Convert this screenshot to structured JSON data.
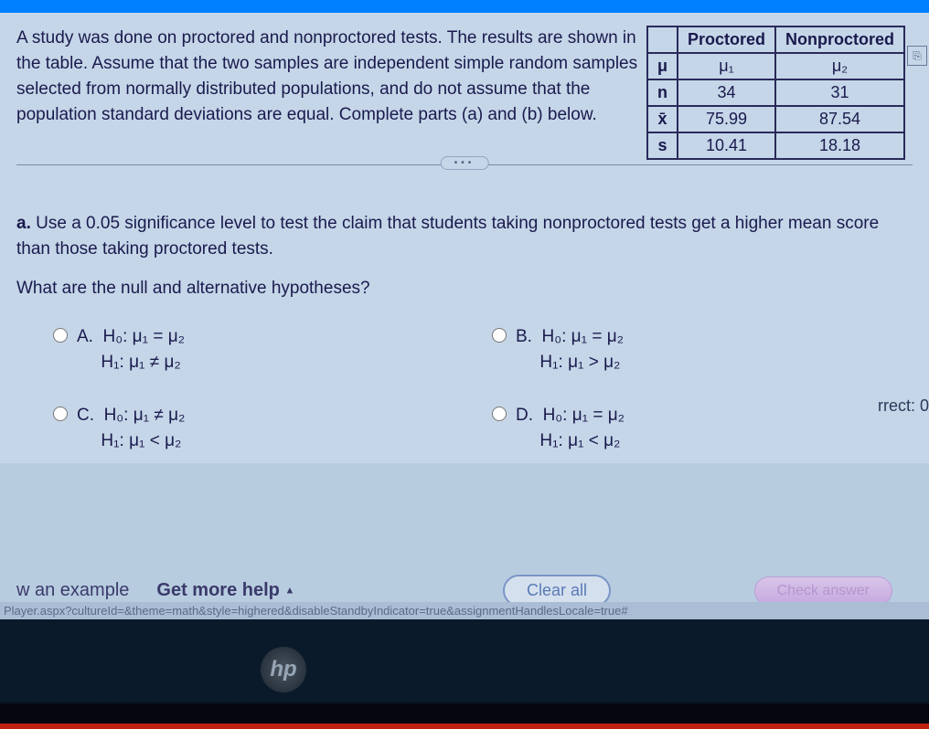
{
  "problem": {
    "text": "A study was done on proctored and nonproctored tests. The results are shown in the table. Assume that the two samples are independent simple random samples selected from normally distributed populations, and do not assume that the population standard deviations are equal. Complete parts (a) and (b) below."
  },
  "table": {
    "headers": [
      "",
      "Proctored",
      "Nonproctored"
    ],
    "rows": [
      {
        "label": "μ",
        "c1": "μ₁",
        "c2": "μ₂"
      },
      {
        "label": "n",
        "c1": "34",
        "c2": "31"
      },
      {
        "label": "x̄",
        "c1": "75.99",
        "c2": "87.54"
      },
      {
        "label": "s",
        "c1": "10.41",
        "c2": "18.18"
      }
    ]
  },
  "partA": {
    "prefix": "a.",
    "text": "Use a 0.05 significance level to test the claim that students taking nonproctored tests get a higher mean score than those taking proctored tests.",
    "question": "What are the null and alternative hypotheses?"
  },
  "options": {
    "A": {
      "label": "A.",
      "h0": "H₀: μ₁ = μ₂",
      "h1": "H₁: μ₁ ≠ μ₂"
    },
    "B": {
      "label": "B.",
      "h0": "H₀: μ₁ = μ₂",
      "h1": "H₁: μ₁ > μ₂"
    },
    "C": {
      "label": "C.",
      "h0": "H₀: μ₁ ≠ μ₂",
      "h1": "H₁: μ₁ < μ₂"
    },
    "D": {
      "label": "D.",
      "h0": "H₀: μ₁ = μ₂",
      "h1": "H₁: μ₁ < μ₂"
    }
  },
  "footer": {
    "example": "w an example",
    "help": "Get more help",
    "clear": "Clear all",
    "check": "Check answer"
  },
  "url": "Player.aspx?cultureId=&theme=math&style=highered&disableStandbyIndicator=true&assignmentHandlesLocale=true#",
  "side": {
    "rrect": "rrect: 0"
  },
  "logo": "hp"
}
